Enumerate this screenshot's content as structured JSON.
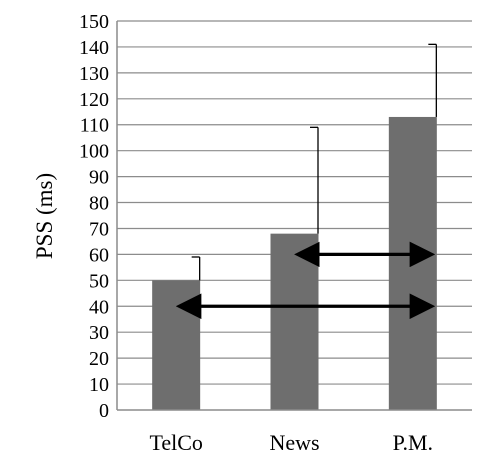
{
  "chart_data": {
    "type": "bar",
    "categories": [
      "TelCo",
      "News",
      "P.M."
    ],
    "values": [
      50,
      68,
      113
    ],
    "error_upper": [
      59,
      109,
      141
    ],
    "ylabel": "PSS (ms)",
    "xlabel": "",
    "title": "",
    "ylim": [
      0,
      150
    ],
    "y_tick_step": 10,
    "grid": true,
    "bar_color": "#6e6e6e",
    "grid_color": "#8c8c8c",
    "comparisons": [
      {
        "from": "News",
        "to": "P.M.",
        "y": 60
      },
      {
        "from": "TelCo",
        "to": "P.M.",
        "y": 40
      }
    ]
  }
}
